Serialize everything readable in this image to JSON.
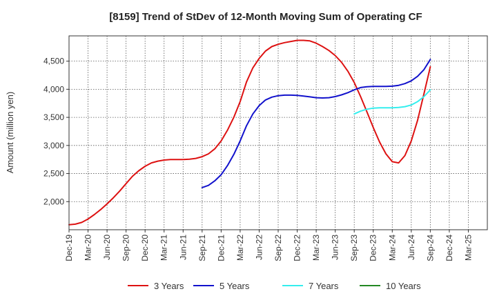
{
  "chart_data": {
    "type": "line",
    "title": "[8159]  Trend of StDev of 12-Month Moving Sum of Operating CF",
    "ylabel": "Amount (million yen)",
    "xlabel": "",
    "ylim": [
      1500,
      4950
    ],
    "y_ticks": [
      2000,
      2500,
      3000,
      3500,
      4000,
      4500
    ],
    "y_tick_labels": [
      "2,000",
      "2,500",
      "3,000",
      "3,500",
      "4,000",
      "4,500"
    ],
    "x_tick_labels": [
      "Dec-19",
      "Mar-20",
      "Jun-20",
      "Sep-20",
      "Dec-20",
      "Mar-21",
      "Jun-21",
      "Sep-21",
      "Dec-21",
      "Mar-22",
      "Jun-22",
      "Sep-22",
      "Dec-22",
      "Mar-23",
      "Jun-23",
      "Sep-23",
      "Dec-23",
      "Mar-24",
      "Jun-24",
      "Sep-24",
      "Dec-24",
      "Mar-25"
    ],
    "grid": true,
    "legend_position": "bottom",
    "series": [
      {
        "name": "3 Years",
        "color": "#dd1111",
        "x": [
          "2019-12",
          "2020-01",
          "2020-02",
          "2020-03",
          "2020-04",
          "2020-05",
          "2020-06",
          "2020-07",
          "2020-08",
          "2020-09",
          "2020-10",
          "2020-11",
          "2020-12",
          "2021-01",
          "2021-02",
          "2021-03",
          "2021-04",
          "2021-05",
          "2021-06",
          "2021-07",
          "2021-08",
          "2021-09",
          "2021-10",
          "2021-11",
          "2021-12",
          "2022-01",
          "2022-02",
          "2022-03",
          "2022-04",
          "2022-05",
          "2022-06",
          "2022-07",
          "2022-08",
          "2022-09",
          "2022-10",
          "2022-11",
          "2022-12",
          "2023-01",
          "2023-02",
          "2023-03",
          "2023-04",
          "2023-05",
          "2023-06",
          "2023-07",
          "2023-08",
          "2023-09",
          "2023-10",
          "2023-11",
          "2023-12",
          "2024-01",
          "2024-02",
          "2024-03",
          "2024-04",
          "2024-05",
          "2024-06",
          "2024-07",
          "2024-08",
          "2024-09"
        ],
        "values": [
          1590,
          1600,
          1630,
          1690,
          1770,
          1860,
          1960,
          2070,
          2190,
          2320,
          2450,
          2550,
          2630,
          2690,
          2720,
          2740,
          2750,
          2750,
          2750,
          2755,
          2770,
          2800,
          2850,
          2940,
          3080,
          3270,
          3500,
          3780,
          4130,
          4380,
          4550,
          4680,
          4760,
          4800,
          4830,
          4850,
          4870,
          4870,
          4860,
          4820,
          4760,
          4690,
          4600,
          4480,
          4320,
          4120,
          3870,
          3600,
          3320,
          3060,
          2850,
          2710,
          2690,
          2820,
          3080,
          3450,
          3920,
          4400
        ]
      },
      {
        "name": "5 Years",
        "color": "#1111cc",
        "x": [
          "2021-09",
          "2021-10",
          "2021-11",
          "2021-12",
          "2022-01",
          "2022-02",
          "2022-03",
          "2022-04",
          "2022-05",
          "2022-06",
          "2022-07",
          "2022-08",
          "2022-09",
          "2022-10",
          "2022-11",
          "2022-12",
          "2023-01",
          "2023-02",
          "2023-03",
          "2023-04",
          "2023-05",
          "2023-06",
          "2023-07",
          "2023-08",
          "2023-09",
          "2023-10",
          "2023-11",
          "2023-12",
          "2024-01",
          "2024-02",
          "2024-03",
          "2024-04",
          "2024-05",
          "2024-06",
          "2024-07",
          "2024-08",
          "2024-09"
        ],
        "values": [
          2250,
          2290,
          2370,
          2480,
          2640,
          2840,
          3080,
          3350,
          3560,
          3710,
          3810,
          3860,
          3885,
          3895,
          3895,
          3890,
          3880,
          3865,
          3850,
          3845,
          3850,
          3870,
          3900,
          3940,
          3990,
          4030,
          4045,
          4050,
          4050,
          4050,
          4055,
          4070,
          4100,
          4150,
          4230,
          4350,
          4530
        ]
      },
      {
        "name": "7 Years",
        "color": "#33eeee",
        "x": [
          "2023-09",
          "2023-10",
          "2023-11",
          "2023-12",
          "2024-01",
          "2024-02",
          "2024-03",
          "2024-04",
          "2024-05",
          "2024-06",
          "2024-07",
          "2024-08",
          "2024-09"
        ],
        "values": [
          3560,
          3610,
          3645,
          3665,
          3670,
          3670,
          3670,
          3675,
          3690,
          3720,
          3780,
          3870,
          3990
        ]
      },
      {
        "name": "10 Years",
        "color": "#228822",
        "x": [],
        "values": []
      }
    ]
  }
}
